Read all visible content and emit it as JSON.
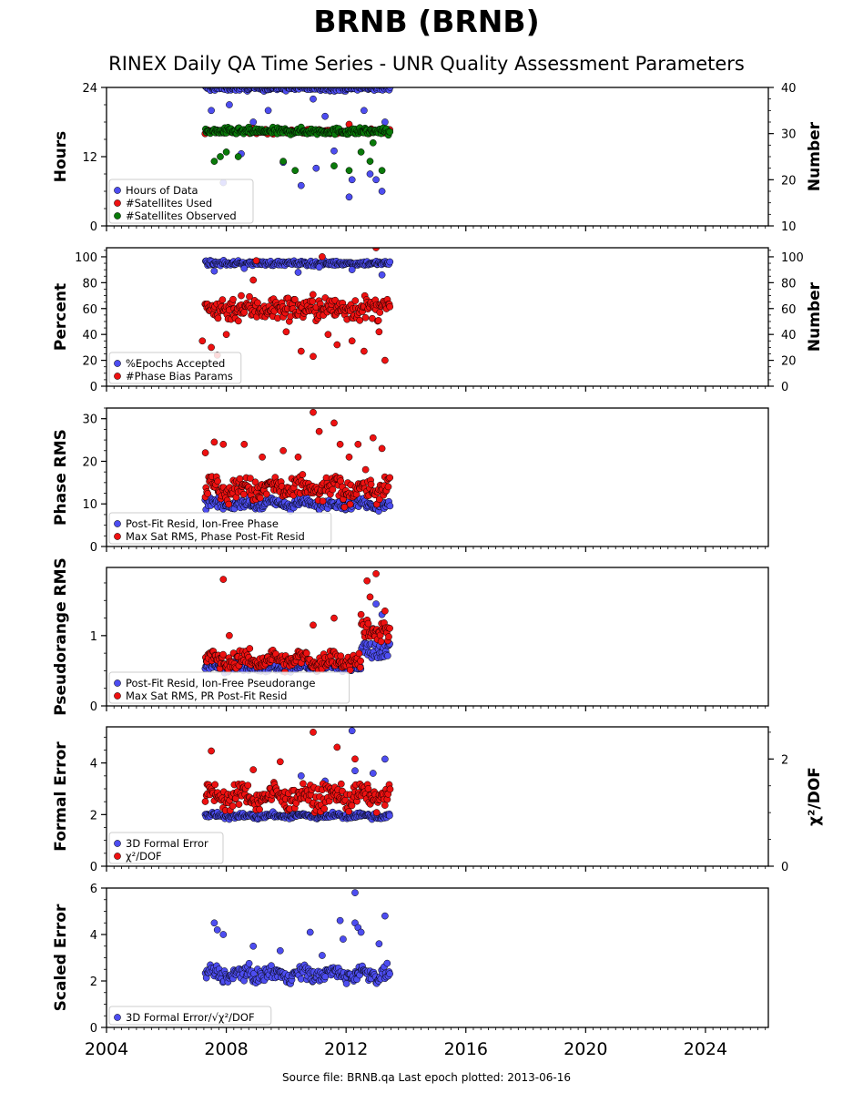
{
  "title": "BRNB (BRNB)",
  "subtitle": "RINEX Daily QA Time Series - UNR Quality Assessment Parameters",
  "footer": "Source file: BRNB.qa Last epoch plotted: 2013-06-16",
  "colors": {
    "blue": "#4d4df0",
    "red": "#ee1111",
    "green": "#0a7a0a"
  },
  "chart_data": [
    {
      "type": "scatter",
      "ylabel": "Hours",
      "y2label": "Number",
      "xlim": [
        2004,
        2026.1
      ],
      "ylim": [
        0,
        24
      ],
      "y2lim": [
        10,
        40
      ],
      "yticks": [
        0,
        12,
        24
      ],
      "y2ticks": [
        10,
        20,
        30,
        40
      ],
      "legend": [
        "Hours of Data",
        "#Satellites Used",
        "#Satellites Observed"
      ],
      "series": [
        {
          "name": "Hours of Data",
          "color": "blue",
          "axis": "left",
          "base": 23.9,
          "noise": 0.4,
          "outliers": [
            [
              2007.5,
              20
            ],
            [
              2007.9,
              7.5
            ],
            [
              2008.5,
              12.5
            ],
            [
              2008.9,
              18
            ],
            [
              2009.4,
              20
            ],
            [
              2009.9,
              11
            ],
            [
              2010.5,
              7
            ],
            [
              2010.9,
              22
            ],
            [
              2011.0,
              10
            ],
            [
              2011.6,
              13
            ],
            [
              2012.1,
              5
            ],
            [
              2012.2,
              8
            ],
            [
              2012.3,
              16
            ],
            [
              2012.6,
              20
            ],
            [
              2012.8,
              9
            ],
            [
              2013.0,
              8
            ],
            [
              2013.2,
              6
            ],
            [
              2013.3,
              18
            ],
            [
              2011.3,
              19
            ],
            [
              2008.1,
              21
            ]
          ]
        },
        {
          "name": "#Satellites Used",
          "color": "red",
          "axis": "right",
          "base": 30.5,
          "noise": 0.4,
          "outliers": [
            [
              2012.1,
              32
            ],
            [
              2011.7,
              30
            ]
          ]
        },
        {
          "name": "#Satellites Observed",
          "color": "green",
          "axis": "right",
          "base": 30.5,
          "noise": 0.6,
          "outliers": [
            [
              2007.6,
              24
            ],
            [
              2007.8,
              25
            ],
            [
              2008.0,
              26
            ],
            [
              2008.4,
              25
            ],
            [
              2009.9,
              24
            ],
            [
              2010.3,
              22
            ],
            [
              2011.6,
              23
            ],
            [
              2012.1,
              22
            ],
            [
              2012.5,
              26
            ],
            [
              2012.8,
              24
            ],
            [
              2013.2,
              22
            ],
            [
              2012.9,
              28
            ]
          ]
        }
      ]
    },
    {
      "type": "scatter",
      "ylabel": "Percent",
      "y2label": "Number",
      "xlim": [
        2004,
        2026.1
      ],
      "ylim": [
        0,
        107
      ],
      "y2lim": [
        0,
        107
      ],
      "yticks": [
        0,
        20,
        40,
        60,
        80,
        100
      ],
      "y2ticks": [
        0,
        20,
        40,
        60,
        80,
        100
      ],
      "legend": [
        "%Epochs Accepted",
        "#Phase Bias Params"
      ],
      "series": [
        {
          "name": "%Epochs Accepted",
          "color": "blue",
          "axis": "left",
          "base": 95,
          "noise": 1.5,
          "outliers": [
            [
              2007.6,
              89
            ],
            [
              2008.6,
              91
            ],
            [
              2010.4,
              88
            ],
            [
              2011.1,
              92
            ],
            [
              2012.2,
              90
            ],
            [
              2013.2,
              86
            ]
          ]
        },
        {
          "name": "#Phase Bias Params",
          "color": "red",
          "axis": "right",
          "base": 60,
          "noise": 8,
          "outliers": [
            [
              2007.2,
              35
            ],
            [
              2007.5,
              30
            ],
            [
              2007.7,
              24
            ],
            [
              2008.0,
              40
            ],
            [
              2008.5,
              70
            ],
            [
              2009.0,
              97
            ],
            [
              2010.0,
              42
            ],
            [
              2010.5,
              27
            ],
            [
              2010.9,
              23
            ],
            [
              2011.2,
              100
            ],
            [
              2011.4,
              40
            ],
            [
              2011.7,
              32
            ],
            [
              2012.2,
              35
            ],
            [
              2012.6,
              27
            ],
            [
              2013.0,
              107
            ],
            [
              2013.3,
              20
            ],
            [
              2013.1,
              42
            ],
            [
              2008.9,
              82
            ]
          ]
        }
      ]
    },
    {
      "type": "scatter",
      "ylabel": "Phase RMS",
      "xlim": [
        2004,
        2026.1
      ],
      "ylim": [
        0,
        32.5
      ],
      "yticks": [
        0,
        10,
        20,
        30
      ],
      "legend": [
        "Post-Fit Resid, Ion-Free Phase",
        "Max Sat RMS, Phase Post-Fit Resid"
      ],
      "series": [
        {
          "name": "Post-Fit Resid, Ion-Free Phase",
          "color": "blue",
          "axis": "left",
          "base": 10,
          "noise": 0.9,
          "outliers": []
        },
        {
          "name": "Max Sat RMS, Phase Post-Fit Resid",
          "color": "red",
          "axis": "left",
          "base": 13.5,
          "noise": 2.2,
          "outliers": [
            [
              2007.3,
              22
            ],
            [
              2007.6,
              24.5
            ],
            [
              2007.9,
              24
            ],
            [
              2008.6,
              24
            ],
            [
              2009.2,
              21
            ],
            [
              2009.9,
              22.5
            ],
            [
              2010.4,
              21
            ],
            [
              2010.9,
              31.5
            ],
            [
              2011.1,
              27
            ],
            [
              2011.6,
              29
            ],
            [
              2011.8,
              24
            ],
            [
              2012.1,
              21
            ],
            [
              2012.4,
              24
            ],
            [
              2012.9,
              25.5
            ],
            [
              2013.2,
              23
            ]
          ]
        }
      ]
    },
    {
      "type": "scatter",
      "ylabel": "Pseudorange RMS",
      "xlim": [
        2004,
        2026.1
      ],
      "ylim": [
        0,
        1.97
      ],
      "yticks": [
        0,
        1
      ],
      "legend": [
        "Post-Fit Resid, Ion-Free Pseudorange",
        "Max Sat RMS, PR Post-Fit Resid"
      ],
      "series": [
        {
          "name": "Post-Fit Resid, Ion-Free Pseudorange",
          "color": "blue",
          "axis": "left",
          "base": 0.55,
          "noise": 0.05,
          "outliers": [
            [
              2012.6,
              1.2
            ],
            [
              2012.9,
              1.1
            ],
            [
              2013.0,
              1.45
            ],
            [
              2013.2,
              1.3
            ]
          ]
        },
        {
          "name": "Max Sat RMS, PR Post-Fit Resid",
          "color": "red",
          "axis": "left",
          "base": 0.65,
          "noise": 0.1,
          "outliers": [
            [
              2007.9,
              1.8
            ],
            [
              2008.1,
              1.0
            ],
            [
              2010.9,
              1.15
            ],
            [
              2011.6,
              1.25
            ],
            [
              2012.7,
              1.78
            ],
            [
              2012.8,
              1.55
            ],
            [
              2013.0,
              1.88
            ],
            [
              2013.3,
              1.35
            ],
            [
              2012.5,
              1.3
            ]
          ]
        }
      ]
    },
    {
      "type": "scatter",
      "ylabel": "Formal Error",
      "y2label": "χ²/DOF",
      "xlim": [
        2004,
        2026.1
      ],
      "ylim": [
        0,
        5.4
      ],
      "y2lim": [
        0,
        2.6
      ],
      "yticks": [
        0,
        2,
        4
      ],
      "y2ticks": [
        0,
        2
      ],
      "legend": [
        "3D Formal Error",
        "χ²/DOF"
      ],
      "series": [
        {
          "name": "3D Formal Error",
          "color": "blue",
          "axis": "left",
          "base": 1.95,
          "noise": 0.08,
          "outliers": [
            [
              2012.2,
              5.25
            ],
            [
              2013.3,
              4.15
            ],
            [
              2012.3,
              3.7
            ],
            [
              2012.9,
              3.6
            ],
            [
              2011.3,
              3.3
            ],
            [
              2010.5,
              3.5
            ]
          ]
        },
        {
          "name": "χ²/DOF",
          "color": "red",
          "axis": "right",
          "base": 1.3,
          "noise": 0.17,
          "outliers": [
            [
              2007.5,
              2.15
            ],
            [
              2010.9,
              2.5
            ],
            [
              2011.7,
              2.22
            ],
            [
              2012.3,
              2.0
            ],
            [
              2008.9,
              1.8
            ],
            [
              2009.8,
              1.95
            ]
          ]
        }
      ]
    },
    {
      "type": "scatter",
      "ylabel": "Scaled Error",
      "xlim": [
        2004,
        2026.1
      ],
      "ylim": [
        0,
        6
      ],
      "yticks": [
        0,
        2,
        4,
        6
      ],
      "legend": [
        "3D Formal Error/√χ²/DOF"
      ],
      "series": [
        {
          "name": "3D Formal Error/√χ²/DOF",
          "color": "blue",
          "axis": "left",
          "base": 2.3,
          "noise": 0.25,
          "outliers": [
            [
              2007.6,
              4.5
            ],
            [
              2007.7,
              4.2
            ],
            [
              2007.9,
              4.0
            ],
            [
              2008.9,
              3.5
            ],
            [
              2009.8,
              3.3
            ],
            [
              2010.8,
              4.1
            ],
            [
              2011.2,
              3.1
            ],
            [
              2011.8,
              4.6
            ],
            [
              2011.9,
              3.8
            ],
            [
              2012.3,
              5.8
            ],
            [
              2012.3,
              4.5
            ],
            [
              2012.4,
              4.3
            ],
            [
              2012.5,
              4.1
            ],
            [
              2013.3,
              4.8
            ],
            [
              2013.1,
              3.6
            ]
          ]
        }
      ]
    }
  ],
  "x_axis": {
    "ticks": [
      2004,
      2008,
      2012,
      2016,
      2020,
      2024
    ],
    "data_start": 2007.3,
    "data_end": 2013.46
  }
}
